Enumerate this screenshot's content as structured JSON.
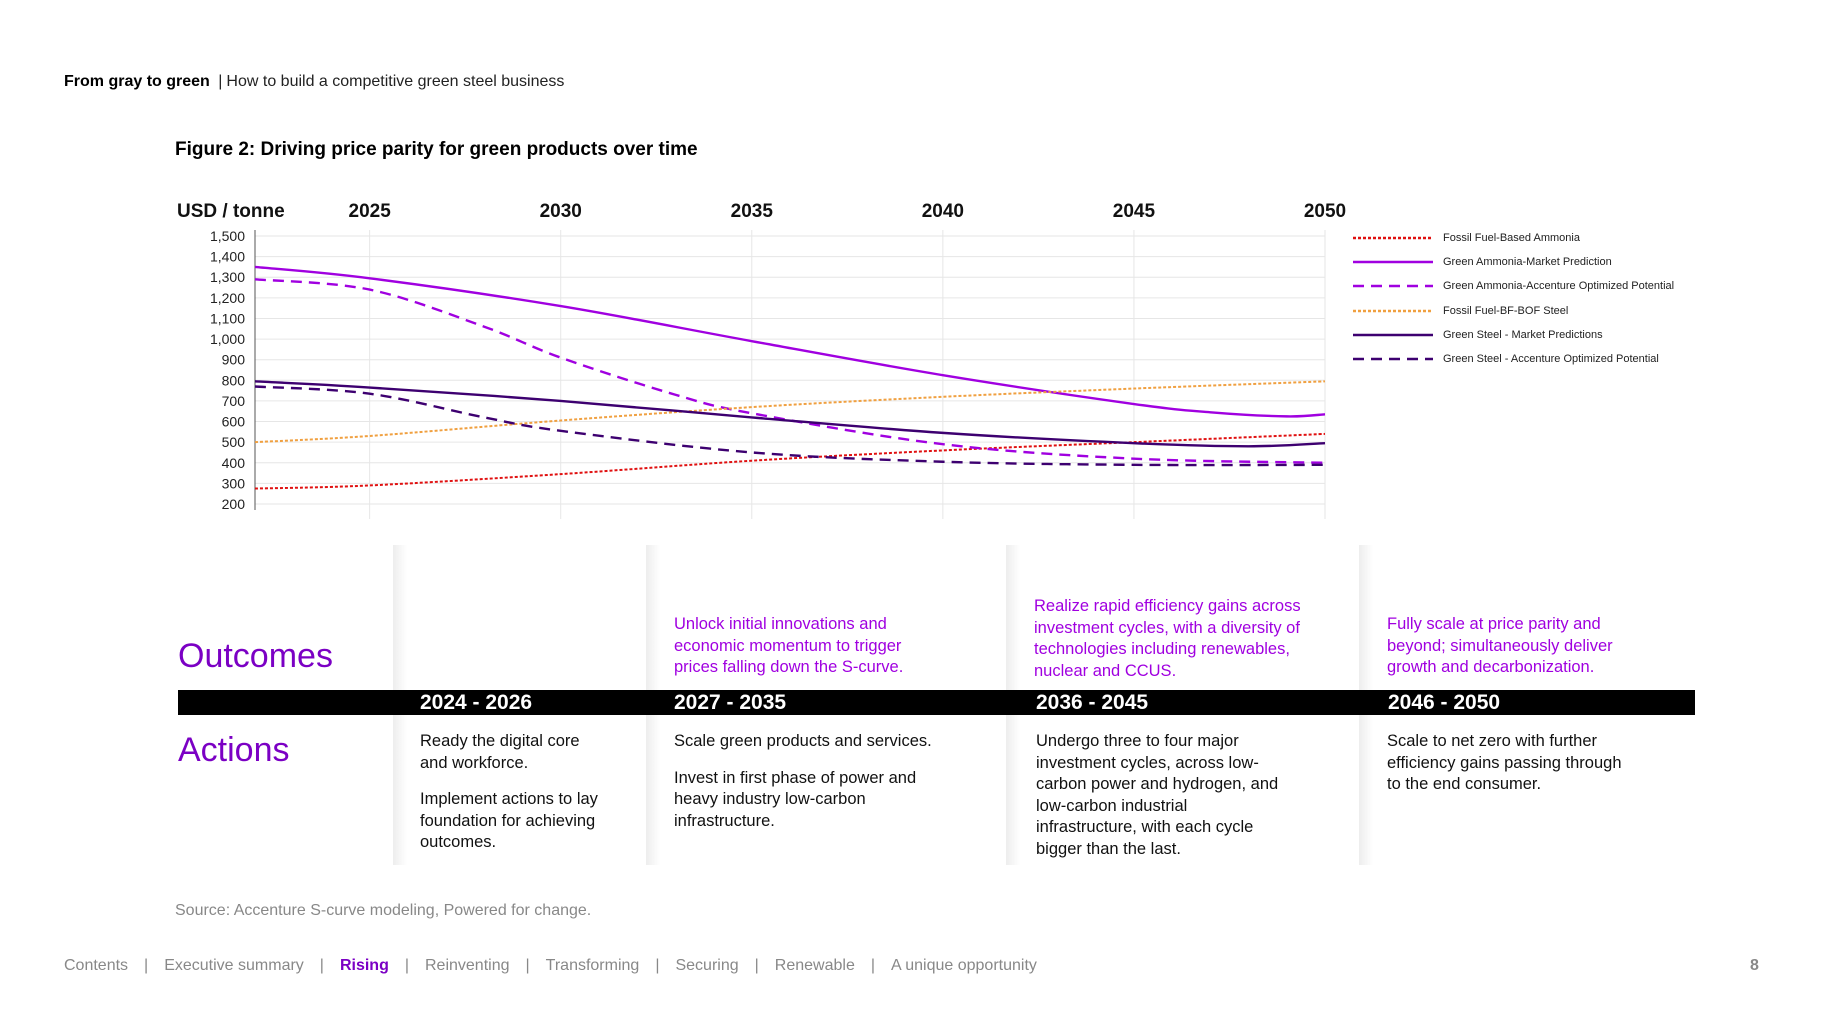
{
  "header": {
    "title_bold": "From gray to green",
    "separator": "|",
    "subtitle": "How to build a competitive green steel business"
  },
  "figure_title": "Figure 2: Driving price parity for green products over time",
  "chart_data": {
    "type": "line",
    "ylabel": "USD / tonne",
    "x_ticks": [
      "2025",
      "2030",
      "2035",
      "2040",
      "2045",
      "2050"
    ],
    "y_ticks": [
      "1,500",
      "1,400",
      "1,300",
      "1,200",
      "1,100",
      "1,000",
      "900",
      "800",
      "700",
      "600",
      "500",
      "400",
      "300",
      "200"
    ],
    "xlim": [
      2022,
      2050
    ],
    "ylim": [
      200,
      1500
    ],
    "grid": true,
    "legend_position": "right",
    "series": [
      {
        "name": "Fossil Fuel-Based Ammonia",
        "color": "#e01010",
        "style": "dotted",
        "x": [
          2022,
          2025,
          2030,
          2035,
          2040,
          2045,
          2050
        ],
        "y": [
          275,
          290,
          345,
          410,
          460,
          500,
          540
        ]
      },
      {
        "name": "Green Ammonia-Market Prediction",
        "color": "#a000e0",
        "style": "solid",
        "x": [
          2022,
          2025,
          2030,
          2035,
          2040,
          2045,
          2047,
          2049,
          2050
        ],
        "y": [
          1350,
          1295,
          1160,
          990,
          825,
          685,
          645,
          625,
          635
        ]
      },
      {
        "name": "Green Ammonia-Accenture Optimized Potential",
        "color": "#a000e0",
        "style": "dashed",
        "x": [
          2022,
          2025,
          2028,
          2030,
          2033,
          2035,
          2040,
          2045,
          2050
        ],
        "y": [
          1290,
          1240,
          1060,
          910,
          730,
          640,
          490,
          420,
          400
        ]
      },
      {
        "name": "Fossil Fuel-BF-BOF Steel",
        "color": "#f0a040",
        "style": "dotted",
        "x": [
          2022,
          2025,
          2030,
          2035,
          2040,
          2045,
          2050
        ],
        "y": [
          500,
          530,
          605,
          670,
          720,
          760,
          795
        ]
      },
      {
        "name": "Green Steel - Market Predictions",
        "color": "#3d0070",
        "style": "solid",
        "x": [
          2022,
          2025,
          2030,
          2035,
          2040,
          2045,
          2048,
          2050
        ],
        "y": [
          795,
          765,
          700,
          620,
          545,
          495,
          480,
          495
        ]
      },
      {
        "name": "Green Steel - Accenture Optimized Potential",
        "color": "#3d0070",
        "style": "dashed",
        "x": [
          2022,
          2025,
          2028,
          2030,
          2035,
          2040,
          2045,
          2050
        ],
        "y": [
          770,
          735,
          620,
          555,
          450,
          405,
          390,
          390
        ]
      }
    ]
  },
  "legend_items": [
    "Fossil Fuel-Based Ammonia",
    "Green Ammonia-Market Prediction",
    "Green Ammonia-Accenture Optimized Potential",
    "Fossil Fuel-BF-BOF Steel",
    "Green Steel - Market Predictions",
    "Green Steel - Accenture Optimized Potential"
  ],
  "timeline": {
    "outcomes_label": "Outcomes",
    "actions_label": "Actions",
    "periods": [
      {
        "label": "2024 - 2026",
        "outcome": "",
        "actions": [
          "Ready the digital core and workforce.",
          "Implement actions to lay foundation for achieving outcomes."
        ]
      },
      {
        "label": "2027 - 2035",
        "outcome": "Unlock initial innovations and economic momentum to trigger prices falling down the S-curve.",
        "actions": [
          "Scale green products and services.",
          "Invest in first phase of power and heavy industry low-carbon infrastructure."
        ]
      },
      {
        "label": "2036 - 2045",
        "outcome": "Realize rapid efficiency gains across investment cycles, with a diversity of technologies including renewables, nuclear and CCUS.",
        "actions": [
          "Undergo three to four major investment cycles, across low-carbon power and hydrogen, and low-carbon industrial infrastructure, with each cycle bigger than the last."
        ]
      },
      {
        "label": "2046 - 2050",
        "outcome": "Fully scale at price parity and beyond; simultaneously deliver growth and decarbonization.",
        "actions": [
          "Scale to net zero with further efficiency gains passing through to the end consumer."
        ]
      }
    ]
  },
  "source": "Source: Accenture S-curve modeling, Powered for change.",
  "footer": {
    "nav": [
      "Contents",
      "Executive summary",
      "Rising",
      "Reinventing",
      "Transforming",
      "Securing",
      "Renewable",
      "A unique opportunity"
    ],
    "active": "Rising",
    "separator": "|",
    "page_number": "8"
  }
}
